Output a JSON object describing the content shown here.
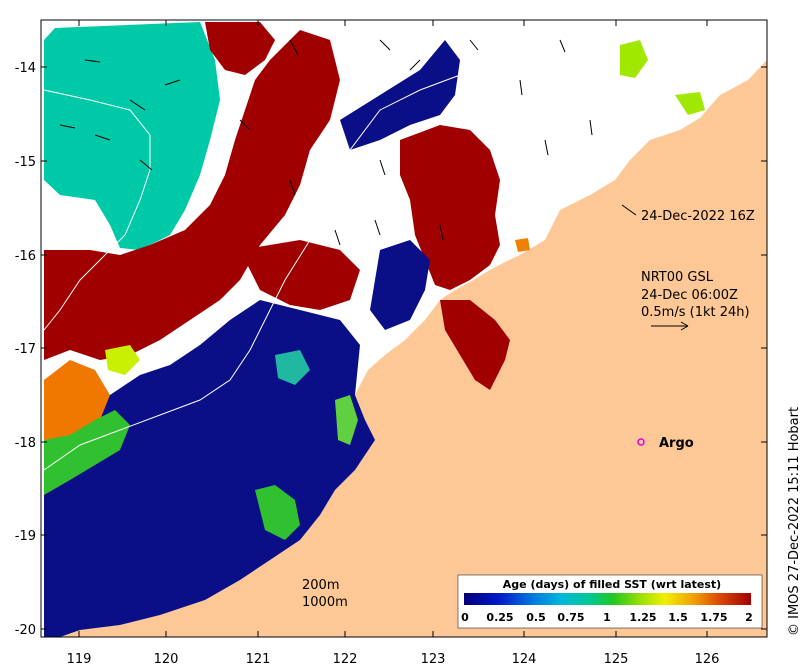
{
  "map": {
    "lat_ticks": [
      "-14",
      "-15",
      "-16",
      "-17",
      "-18",
      "-19",
      "-20"
    ],
    "lon_ticks": [
      "119",
      "120",
      "121",
      "122",
      "123",
      "124",
      "125",
      "126"
    ],
    "timestamp": "24-Dec-2022 16Z",
    "current_block": [
      "NRT00 GSL",
      "24-Dec 06:00Z",
      "0.5m/s (1kt 24h)"
    ],
    "argo_label": "Argo",
    "isobaths": [
      "200m",
      "1000m"
    ],
    "credit": "© IMOS 27-Dec-2022 15:11 Hobart",
    "colorbar_title": "Age (days) of filled SST (wrt latest)",
    "colorbar_ticks": [
      "0",
      "0.25",
      "0.5",
      "0.75",
      "1",
      "1.25",
      "1.5",
      "1.75",
      "2"
    ],
    "colors": {
      "land": "#fdc896",
      "fresh": "#0a0f87",
      "old": "#a00000",
      "cloud": "#ffffff",
      "teal": "#00c9a7",
      "argo": "#e000e0"
    }
  }
}
